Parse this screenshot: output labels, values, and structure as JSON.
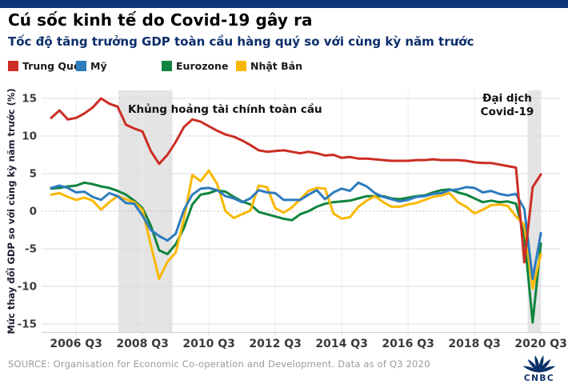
{
  "page": {
    "title": "Cú sốc kinh tế do Covid-19 gây ra",
    "subtitle": "Tốc độ tăng trưởng GDP toàn cầu hàng quý so với cùng kỳ năm trước",
    "brand_bar_color": "#113579"
  },
  "source": {
    "text": "SOURCE: Organisation for Economic Co-operation and Development. Data as of Q3 2020"
  },
  "logo": {
    "name": "CNBC",
    "color": "#0b3168"
  },
  "chart_data": {
    "type": "line",
    "frequency": "quarterly",
    "x_start": "2005 Q4",
    "x_end": "2020 Q3",
    "ylabel": "Mức thay đổi GDP so với cùng kỳ năm trước (%)",
    "ylim": [
      -16,
      16
    ],
    "y_ticks": [
      15,
      10,
      5,
      0,
      -5,
      -10,
      -15
    ],
    "x_tick_labels": [
      "2006 Q3",
      "2008 Q3",
      "2010 Q3",
      "2012 Q3",
      "2014 Q3",
      "2016 Q3",
      "2018 Q3",
      "2020 Q3"
    ],
    "x_tick_indices": [
      3,
      11,
      19,
      27,
      35,
      43,
      51,
      59
    ],
    "grid": "horizontal solid, zero line dotted, faint vertical at ticks",
    "legend_position": "top",
    "series": [
      {
        "name": "Trung Quốc",
        "color": "#cc2d24",
        "values": [
          12.4,
          13.4,
          12.2,
          12.4,
          13.0,
          13.8,
          15.0,
          14.3,
          13.9,
          11.5,
          11.0,
          10.6,
          8.0,
          6.3,
          7.5,
          9.2,
          11.2,
          12.2,
          11.9,
          11.3,
          10.7,
          10.2,
          9.9,
          9.4,
          8.8,
          8.1,
          7.9,
          8.0,
          8.1,
          7.9,
          7.7,
          7.9,
          7.7,
          7.4,
          7.5,
          7.1,
          7.2,
          7.0,
          7.0,
          6.9,
          6.8,
          6.7,
          6.7,
          6.7,
          6.8,
          6.8,
          6.9,
          6.8,
          6.8,
          6.8,
          6.7,
          6.5,
          6.4,
          6.4,
          6.2,
          6.0,
          5.8,
          -6.8,
          3.2,
          4.9
        ]
      },
      {
        "name": "Mỹ",
        "color": "#2e7cbe",
        "values": [
          3.1,
          3.4,
          3.1,
          2.5,
          2.6,
          1.9,
          1.5,
          2.4,
          2.0,
          1.1,
          1.0,
          -0.6,
          -2.5,
          -3.3,
          -3.9,
          -3.0,
          0.2,
          2.2,
          3.0,
          3.1,
          2.8,
          2.0,
          1.7,
          1.2,
          1.7,
          2.8,
          2.5,
          2.4,
          1.5,
          1.5,
          1.5,
          2.2,
          2.8,
          1.6,
          2.5,
          3.0,
          2.7,
          3.8,
          3.3,
          2.4,
          1.9,
          1.6,
          1.3,
          1.5,
          1.9,
          2.0,
          2.3,
          2.4,
          2.8,
          2.9,
          3.2,
          3.1,
          2.5,
          2.7,
          2.3,
          2.1,
          2.3,
          0.3,
          -9.0,
          -2.9
        ]
      },
      {
        "name": "Eurozone",
        "color": "#10843f",
        "values": [
          3.0,
          3.1,
          3.3,
          3.4,
          3.8,
          3.6,
          3.3,
          3.1,
          2.7,
          2.2,
          1.4,
          0.4,
          -1.9,
          -5.2,
          -5.7,
          -4.4,
          -2.2,
          0.9,
          2.2,
          2.4,
          2.8,
          2.6,
          1.9,
          1.3,
          0.9,
          -0.1,
          -0.4,
          -0.7,
          -1.0,
          -1.2,
          -0.4,
          0.0,
          0.6,
          1.0,
          1.2,
          1.3,
          1.4,
          1.7,
          2.0,
          2.0,
          2.0,
          1.7,
          1.6,
          1.8,
          2.0,
          2.1,
          2.5,
          2.8,
          2.9,
          2.5,
          2.2,
          1.7,
          1.2,
          1.4,
          1.2,
          1.3,
          1.0,
          -3.3,
          -14.8,
          -4.3
        ]
      },
      {
        "name": "Nhật Bản",
        "color": "#f9b800",
        "values": [
          2.2,
          2.4,
          1.9,
          1.5,
          1.8,
          1.4,
          0.2,
          1.2,
          2.0,
          1.6,
          1.2,
          0.2,
          -4.5,
          -9.0,
          -6.7,
          -5.5,
          -1.0,
          4.8,
          4.0,
          5.4,
          3.6,
          0.0,
          -0.9,
          -0.4,
          0.1,
          3.4,
          3.2,
          0.4,
          -0.2,
          0.5,
          1.6,
          2.7,
          3.1,
          3.0,
          -0.3,
          -1.0,
          -0.8,
          0.6,
          1.4,
          2.0,
          1.2,
          0.6,
          0.6,
          0.9,
          1.1,
          1.5,
          1.9,
          2.1,
          2.4,
          1.2,
          0.6,
          -0.3,
          0.2,
          0.8,
          0.9,
          0.7,
          -0.7,
          -1.8,
          -10.3,
          -5.7
        ]
      }
    ],
    "bands": [
      {
        "id": "gfc",
        "from_index": 8.1,
        "to_index": 14.6
      },
      {
        "id": "covid",
        "from_index": 57.4,
        "to_index": 59.0
      }
    ],
    "annotations": [
      {
        "id": "gfc",
        "text": "Khủng hoảng tài chính toàn cầu"
      },
      {
        "id": "covid",
        "lines": [
          "Đại dịch",
          "Covid-19"
        ]
      }
    ]
  }
}
